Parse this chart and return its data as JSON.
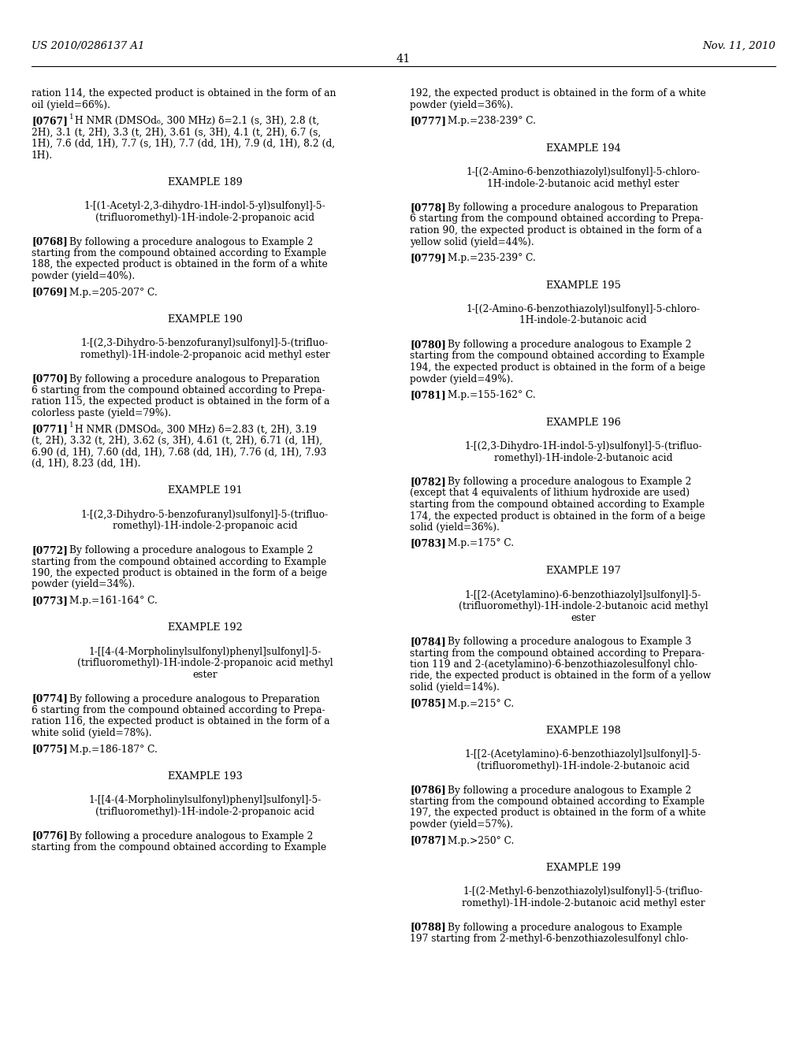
{
  "page_number": "41",
  "header_left": "US 2010/0286137 A1",
  "header_right": "Nov. 11, 2010",
  "background_color": "#ffffff",
  "text_color": "#000000",
  "left_column": [
    {
      "type": "body_cont",
      "lines": [
        "ration 114, the expected product is obtained in the form of an",
        "oil (yield=66%)."
      ]
    },
    {
      "type": "para",
      "tag": "[0767]",
      "sup": "1",
      "lines": [
        "H NMR (DMSOd₆, 300 MHz) δ=2.1 (s, 3H), 2.8 (t,",
        "2H), 3.1 (t, 2H), 3.3 (t, 2H), 3.61 (s, 3H), 4.1 (t, 2H), 6.7 (s,",
        "1H), 7.6 (dd, 1H), 7.7 (s, 1H), 7.7 (dd, 1H), 7.9 (d, 1H), 8.2 (d,",
        "1H)."
      ]
    },
    {
      "type": "gap_large"
    },
    {
      "type": "example",
      "text": "EXAMPLE 189"
    },
    {
      "type": "gap_small"
    },
    {
      "type": "compound",
      "lines": [
        "1-[(1-Acetyl-2,3-dihydro-1H-indol-5-yl)sulfonyl]-5-",
        "(trifluoromethyl)-1H-indole-2-propanoic acid"
      ]
    },
    {
      "type": "gap_small"
    },
    {
      "type": "para",
      "tag": "[0768]",
      "sup": "",
      "lines": [
        "By following a procedure analogous to Example 2",
        "starting from the compound obtained according to Example",
        "188, the expected product is obtained in the form of a white",
        "powder (yield=40%)."
      ]
    },
    {
      "type": "para",
      "tag": "[0769]",
      "sup": "",
      "lines": [
        "M.p.=205-207° C."
      ]
    },
    {
      "type": "gap_large"
    },
    {
      "type": "example",
      "text": "EXAMPLE 190"
    },
    {
      "type": "gap_small"
    },
    {
      "type": "compound",
      "lines": [
        "1-[(2,3-Dihydro-5-benzofuranyl)sulfonyl]-5-(trifluo-",
        "romethyl)-1H-indole-2-propanoic acid methyl ester"
      ]
    },
    {
      "type": "gap_small"
    },
    {
      "type": "para",
      "tag": "[0770]",
      "sup": "",
      "lines": [
        "By following a procedure analogous to Preparation",
        "6 starting from the compound obtained according to Prepa-",
        "ration 115, the expected product is obtained in the form of a",
        "colorless paste (yield=79%)."
      ]
    },
    {
      "type": "para",
      "tag": "[0771]",
      "sup": "1",
      "lines": [
        "H NMR (DMSOd₆, 300 MHz) δ=2.83 (t, 2H), 3.19",
        "(t, 2H), 3.32 (t, 2H), 3.62 (s, 3H), 4.61 (t, 2H), 6.71 (d, 1H),",
        "6.90 (d, 1H), 7.60 (dd, 1H), 7.68 (dd, 1H), 7.76 (d, 1H), 7.93",
        "(d, 1H), 8.23 (dd, 1H)."
      ]
    },
    {
      "type": "gap_large"
    },
    {
      "type": "example",
      "text": "EXAMPLE 191"
    },
    {
      "type": "gap_small"
    },
    {
      "type": "compound",
      "lines": [
        "1-[(2,3-Dihydro-5-benzofuranyl)sulfonyl]-5-(trifluo-",
        "romethyl)-1H-indole-2-propanoic acid"
      ]
    },
    {
      "type": "gap_small"
    },
    {
      "type": "para",
      "tag": "[0772]",
      "sup": "",
      "lines": [
        "By following a procedure analogous to Example 2",
        "starting from the compound obtained according to Example",
        "190, the expected product is obtained in the form of a beige",
        "powder (yield=34%)."
      ]
    },
    {
      "type": "para",
      "tag": "[0773]",
      "sup": "",
      "lines": [
        "M.p.=161-164° C."
      ]
    },
    {
      "type": "gap_large"
    },
    {
      "type": "example",
      "text": "EXAMPLE 192"
    },
    {
      "type": "gap_small"
    },
    {
      "type": "compound",
      "lines": [
        "1-[[4-(4-Morpholinylsulfonyl)phenyl]sulfonyl]-5-",
        "(trifluoromethyl)-1H-indole-2-propanoic acid methyl",
        "ester"
      ]
    },
    {
      "type": "gap_small"
    },
    {
      "type": "para",
      "tag": "[0774]",
      "sup": "",
      "lines": [
        "By following a procedure analogous to Preparation",
        "6 starting from the compound obtained according to Prepa-",
        "ration 116, the expected product is obtained in the form of a",
        "white solid (yield=78%)."
      ]
    },
    {
      "type": "para",
      "tag": "[0775]",
      "sup": "",
      "lines": [
        "M.p.=186-187° C."
      ]
    },
    {
      "type": "gap_large"
    },
    {
      "type": "example",
      "text": "EXAMPLE 193"
    },
    {
      "type": "gap_small"
    },
    {
      "type": "compound",
      "lines": [
        "1-[[4-(4-Morpholinylsulfonyl)phenyl]sulfonyl]-5-",
        "(trifluoromethyl)-1H-indole-2-propanoic acid"
      ]
    },
    {
      "type": "gap_small"
    },
    {
      "type": "para",
      "tag": "[0776]",
      "sup": "",
      "lines": [
        "By following a procedure analogous to Example 2",
        "starting from the compound obtained according to Example"
      ]
    }
  ],
  "right_column": [
    {
      "type": "body_cont",
      "lines": [
        "192, the expected product is obtained in the form of a white",
        "powder (yield=36%)."
      ]
    },
    {
      "type": "para",
      "tag": "[0777]",
      "sup": "",
      "lines": [
        "M.p.=238-239° C."
      ]
    },
    {
      "type": "gap_large"
    },
    {
      "type": "example",
      "text": "EXAMPLE 194"
    },
    {
      "type": "gap_small"
    },
    {
      "type": "compound",
      "lines": [
        "1-[(2-Amino-6-benzothiazolyl)sulfonyl]-5-chloro-",
        "1H-indole-2-butanoic acid methyl ester"
      ]
    },
    {
      "type": "gap_small"
    },
    {
      "type": "para",
      "tag": "[0778]",
      "sup": "",
      "lines": [
        "By following a procedure analogous to Preparation",
        "6 starting from the compound obtained according to Prepa-",
        "ration 90, the expected product is obtained in the form of a",
        "yellow solid (yield=44%)."
      ]
    },
    {
      "type": "para",
      "tag": "[0779]",
      "sup": "",
      "lines": [
        "M.p.=235-239° C."
      ]
    },
    {
      "type": "gap_large"
    },
    {
      "type": "example",
      "text": "EXAMPLE 195"
    },
    {
      "type": "gap_small"
    },
    {
      "type": "compound",
      "lines": [
        "1-[(2-Amino-6-benzothiazolyl)sulfonyl]-5-chloro-",
        "1H-indole-2-butanoic acid"
      ]
    },
    {
      "type": "gap_small"
    },
    {
      "type": "para",
      "tag": "[0780]",
      "sup": "",
      "lines": [
        "By following a procedure analogous to Example 2",
        "starting from the compound obtained according to Example",
        "194, the expected product is obtained in the form of a beige",
        "powder (yield=49%)."
      ]
    },
    {
      "type": "para",
      "tag": "[0781]",
      "sup": "",
      "lines": [
        "M.p.=155-162° C."
      ]
    },
    {
      "type": "gap_large"
    },
    {
      "type": "example",
      "text": "EXAMPLE 196"
    },
    {
      "type": "gap_small"
    },
    {
      "type": "compound",
      "lines": [
        "1-[(2,3-Dihydro-1H-indol-5-yl)sulfonyl]-5-(trifluo-",
        "romethyl)-1H-indole-2-butanoic acid"
      ]
    },
    {
      "type": "gap_small"
    },
    {
      "type": "para",
      "tag": "[0782]",
      "sup": "",
      "lines": [
        "By following a procedure analogous to Example 2",
        "(except that 4 equivalents of lithium hydroxide are used)",
        "starting from the compound obtained according to Example",
        "174, the expected product is obtained in the form of a beige",
        "solid (yield=36%)."
      ]
    },
    {
      "type": "para",
      "tag": "[0783]",
      "sup": "",
      "lines": [
        "M.p.=175° C."
      ]
    },
    {
      "type": "gap_large"
    },
    {
      "type": "example",
      "text": "EXAMPLE 197"
    },
    {
      "type": "gap_small"
    },
    {
      "type": "compound",
      "lines": [
        "1-[[2-(Acetylamino)-6-benzothiazolyl]sulfonyl]-5-",
        "(trifluoromethyl)-1H-indole-2-butanoic acid methyl",
        "ester"
      ]
    },
    {
      "type": "gap_small"
    },
    {
      "type": "para",
      "tag": "[0784]",
      "sup": "",
      "lines": [
        "By following a procedure analogous to Example 3",
        "starting from the compound obtained according to Prepara-",
        "tion 119 and 2-(acetylamino)-6-benzothiazolesulfonyl chlo-",
        "ride, the expected product is obtained in the form of a yellow",
        "solid (yield=14%)."
      ]
    },
    {
      "type": "para",
      "tag": "[0785]",
      "sup": "",
      "lines": [
        "M.p.=215° C."
      ]
    },
    {
      "type": "gap_large"
    },
    {
      "type": "example",
      "text": "EXAMPLE 198"
    },
    {
      "type": "gap_small"
    },
    {
      "type": "compound",
      "lines": [
        "1-[[2-(Acetylamino)-6-benzothiazolyl]sulfonyl]-5-",
        "(trifluoromethyl)-1H-indole-2-butanoic acid"
      ]
    },
    {
      "type": "gap_small"
    },
    {
      "type": "para",
      "tag": "[0786]",
      "sup": "",
      "lines": [
        "By following a procedure analogous to Example 2",
        "starting from the compound obtained according to Example",
        "197, the expected product is obtained in the form of a white",
        "powder (yield=57%)."
      ]
    },
    {
      "type": "para",
      "tag": "[0787]",
      "sup": "",
      "lines": [
        "M.p.>250° C."
      ]
    },
    {
      "type": "gap_large"
    },
    {
      "type": "example",
      "text": "EXAMPLE 199"
    },
    {
      "type": "gap_small"
    },
    {
      "type": "compound",
      "lines": [
        "1-[(2-Methyl-6-benzothiazolyl)sulfonyl]-5-(trifluo-",
        "romethyl)-1H-indole-2-butanoic acid methyl ester"
      ]
    },
    {
      "type": "gap_small"
    },
    {
      "type": "para",
      "tag": "[0788]",
      "sup": "",
      "lines": [
        "By following a procedure analogous to Example",
        "197 starting from 2-methyl-6-benzothiazolesulfonyl chlo-"
      ]
    }
  ]
}
